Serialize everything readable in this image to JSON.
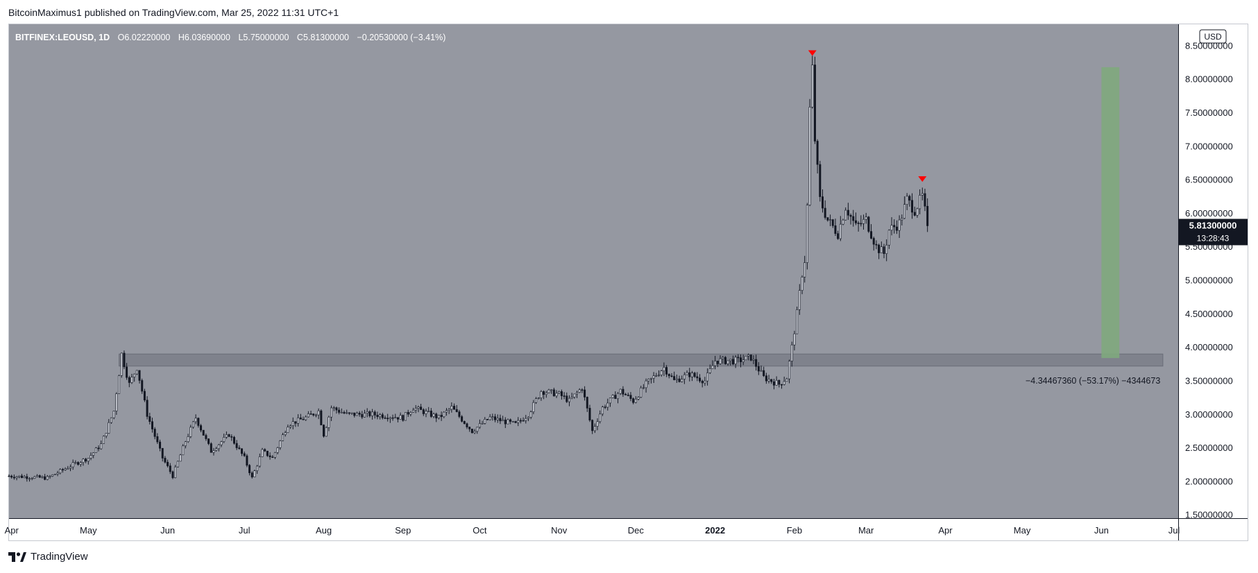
{
  "header": {
    "published_line": "BitcoinMaximus1 published on TradingView.com, Mar 25, 2022 11:31 UTC+1"
  },
  "ohlc_bar": {
    "symbol": "BITFINEX:LEOUSD, 1D",
    "o_label": "O",
    "o_value": "6.02220000",
    "h_label": "H",
    "h_value": "6.03690000",
    "l_label": "L",
    "l_value": "5.75000000",
    "c_label": "C",
    "c_value": "5.81300000",
    "change": "−0.20530000 (−3.41%)"
  },
  "currency_badge": "USD",
  "price_tag": {
    "price": "5.81300000",
    "countdown": "13:28:43"
  },
  "measure_label": "−4.34467360 (−53.17%) −4344673",
  "footer": {
    "brand": "TradingView"
  },
  "colors": {
    "plot_bg": "#9598a1",
    "candle": "#131722",
    "zone": "#787b86",
    "green_bar": "#7fa87d",
    "marker": "#ff0000",
    "price_tag_bg": "#131722"
  },
  "icons": {
    "brand_logo": "tradingview-logo-icon",
    "down_markers": "red-triangle-down-icon"
  },
  "chart_data": {
    "type": "line",
    "symbol": "BITFINEX:LEOUSD",
    "interval": "1D",
    "x_ticks": [
      "Apr",
      "May",
      "Jun",
      "Jul",
      "Aug",
      "Sep",
      "Oct",
      "Nov",
      "Dec",
      "2022",
      "Feb",
      "Mar",
      "Apr",
      "May",
      "Jun",
      "Jul"
    ],
    "y_ticks": [
      "1.50000000",
      "2.00000000",
      "2.50000000",
      "3.00000000",
      "3.50000000",
      "4.00000000",
      "4.50000000",
      "5.00000000",
      "5.50000000",
      "6.00000000",
      "6.50000000",
      "7.00000000",
      "7.50000000",
      "8.00000000",
      "8.50000000"
    ],
    "ylim": [
      1.45,
      8.82
    ],
    "x_start": "2021-03-31",
    "x_end": "2022-07-01",
    "series": [
      {
        "points": [
          [
            "2021-03-31",
            2.08
          ],
          [
            "2021-04-15",
            2.05
          ],
          [
            "2021-04-25",
            2.25
          ],
          [
            "2021-05-01",
            2.35
          ],
          [
            "2021-05-06",
            2.55
          ],
          [
            "2021-05-11",
            3.05
          ],
          [
            "2021-05-14",
            3.9
          ],
          [
            "2021-05-17",
            3.45
          ],
          [
            "2021-05-20",
            3.7
          ],
          [
            "2021-05-24",
            3.0
          ],
          [
            "2021-05-30",
            2.35
          ],
          [
            "2021-06-03",
            2.08
          ],
          [
            "2021-06-08",
            2.6
          ],
          [
            "2021-06-12",
            2.95
          ],
          [
            "2021-06-18",
            2.45
          ],
          [
            "2021-06-25",
            2.7
          ],
          [
            "2021-07-01",
            2.35
          ],
          [
            "2021-07-04",
            2.05
          ],
          [
            "2021-07-08",
            2.45
          ],
          [
            "2021-07-12",
            2.35
          ],
          [
            "2021-07-18",
            2.85
          ],
          [
            "2021-07-25",
            2.95
          ],
          [
            "2021-07-30",
            3.05
          ],
          [
            "2021-08-01",
            2.7
          ],
          [
            "2021-08-04",
            3.1
          ],
          [
            "2021-08-10",
            3.0
          ],
          [
            "2021-08-20",
            3.0
          ],
          [
            "2021-09-01",
            2.95
          ],
          [
            "2021-09-05",
            3.1
          ],
          [
            "2021-09-15",
            2.95
          ],
          [
            "2021-09-20",
            3.1
          ],
          [
            "2021-09-28",
            2.75
          ],
          [
            "2021-10-05",
            2.95
          ],
          [
            "2021-10-15",
            2.85
          ],
          [
            "2021-10-20",
            3.0
          ],
          [
            "2021-10-25",
            3.35
          ],
          [
            "2021-11-01",
            3.3
          ],
          [
            "2021-11-05",
            3.2
          ],
          [
            "2021-11-10",
            3.4
          ],
          [
            "2021-11-14",
            2.75
          ],
          [
            "2021-11-18",
            3.1
          ],
          [
            "2021-11-25",
            3.35
          ],
          [
            "2021-11-30",
            3.2
          ],
          [
            "2021-12-05",
            3.45
          ],
          [
            "2021-12-12",
            3.7
          ],
          [
            "2021-12-16",
            3.5
          ],
          [
            "2021-12-22",
            3.6
          ],
          [
            "2021-12-28",
            3.5
          ],
          [
            "2022-01-01",
            3.8
          ],
          [
            "2022-01-10",
            3.8
          ],
          [
            "2022-01-15",
            3.85
          ],
          [
            "2022-01-20",
            3.55
          ],
          [
            "2022-01-26",
            3.45
          ],
          [
            "2022-01-29",
            3.55
          ],
          [
            "2022-01-31",
            4.0
          ],
          [
            "2022-02-02",
            4.5
          ],
          [
            "2022-02-04",
            5.1
          ],
          [
            "2022-02-05",
            5.3
          ],
          [
            "2022-02-06",
            6.1
          ],
          [
            "2022-02-07",
            7.55
          ],
          [
            "2022-02-08",
            8.15
          ],
          [
            "2022-02-09",
            7.1
          ],
          [
            "2022-02-11",
            6.2
          ],
          [
            "2022-02-14",
            5.9
          ],
          [
            "2022-02-18",
            5.7
          ],
          [
            "2022-02-21",
            6.1
          ],
          [
            "2022-02-25",
            5.8
          ],
          [
            "2022-03-01",
            5.9
          ],
          [
            "2022-03-05",
            5.5
          ],
          [
            "2022-03-08",
            5.4
          ],
          [
            "2022-03-10",
            5.75
          ],
          [
            "2022-03-14",
            5.85
          ],
          [
            "2022-03-17",
            6.2
          ],
          [
            "2022-03-20",
            6.05
          ],
          [
            "2022-03-23",
            6.25
          ],
          [
            "2022-03-25",
            5.813
          ]
        ]
      }
    ],
    "support_zone": {
      "from": "2021-05-13",
      "to": "2022-06-25",
      "low": 3.72,
      "high": 3.9
    },
    "projection_bar": {
      "x_from": "2022-06-01",
      "x_to": "2022-06-08",
      "low": 3.84,
      "high": 8.18
    },
    "markers": [
      {
        "date": "2022-02-08",
        "price": 8.38
      },
      {
        "date": "2022-03-23",
        "price": 6.5
      }
    ],
    "last_price": 5.813,
    "legend": "none",
    "grid": false
  }
}
